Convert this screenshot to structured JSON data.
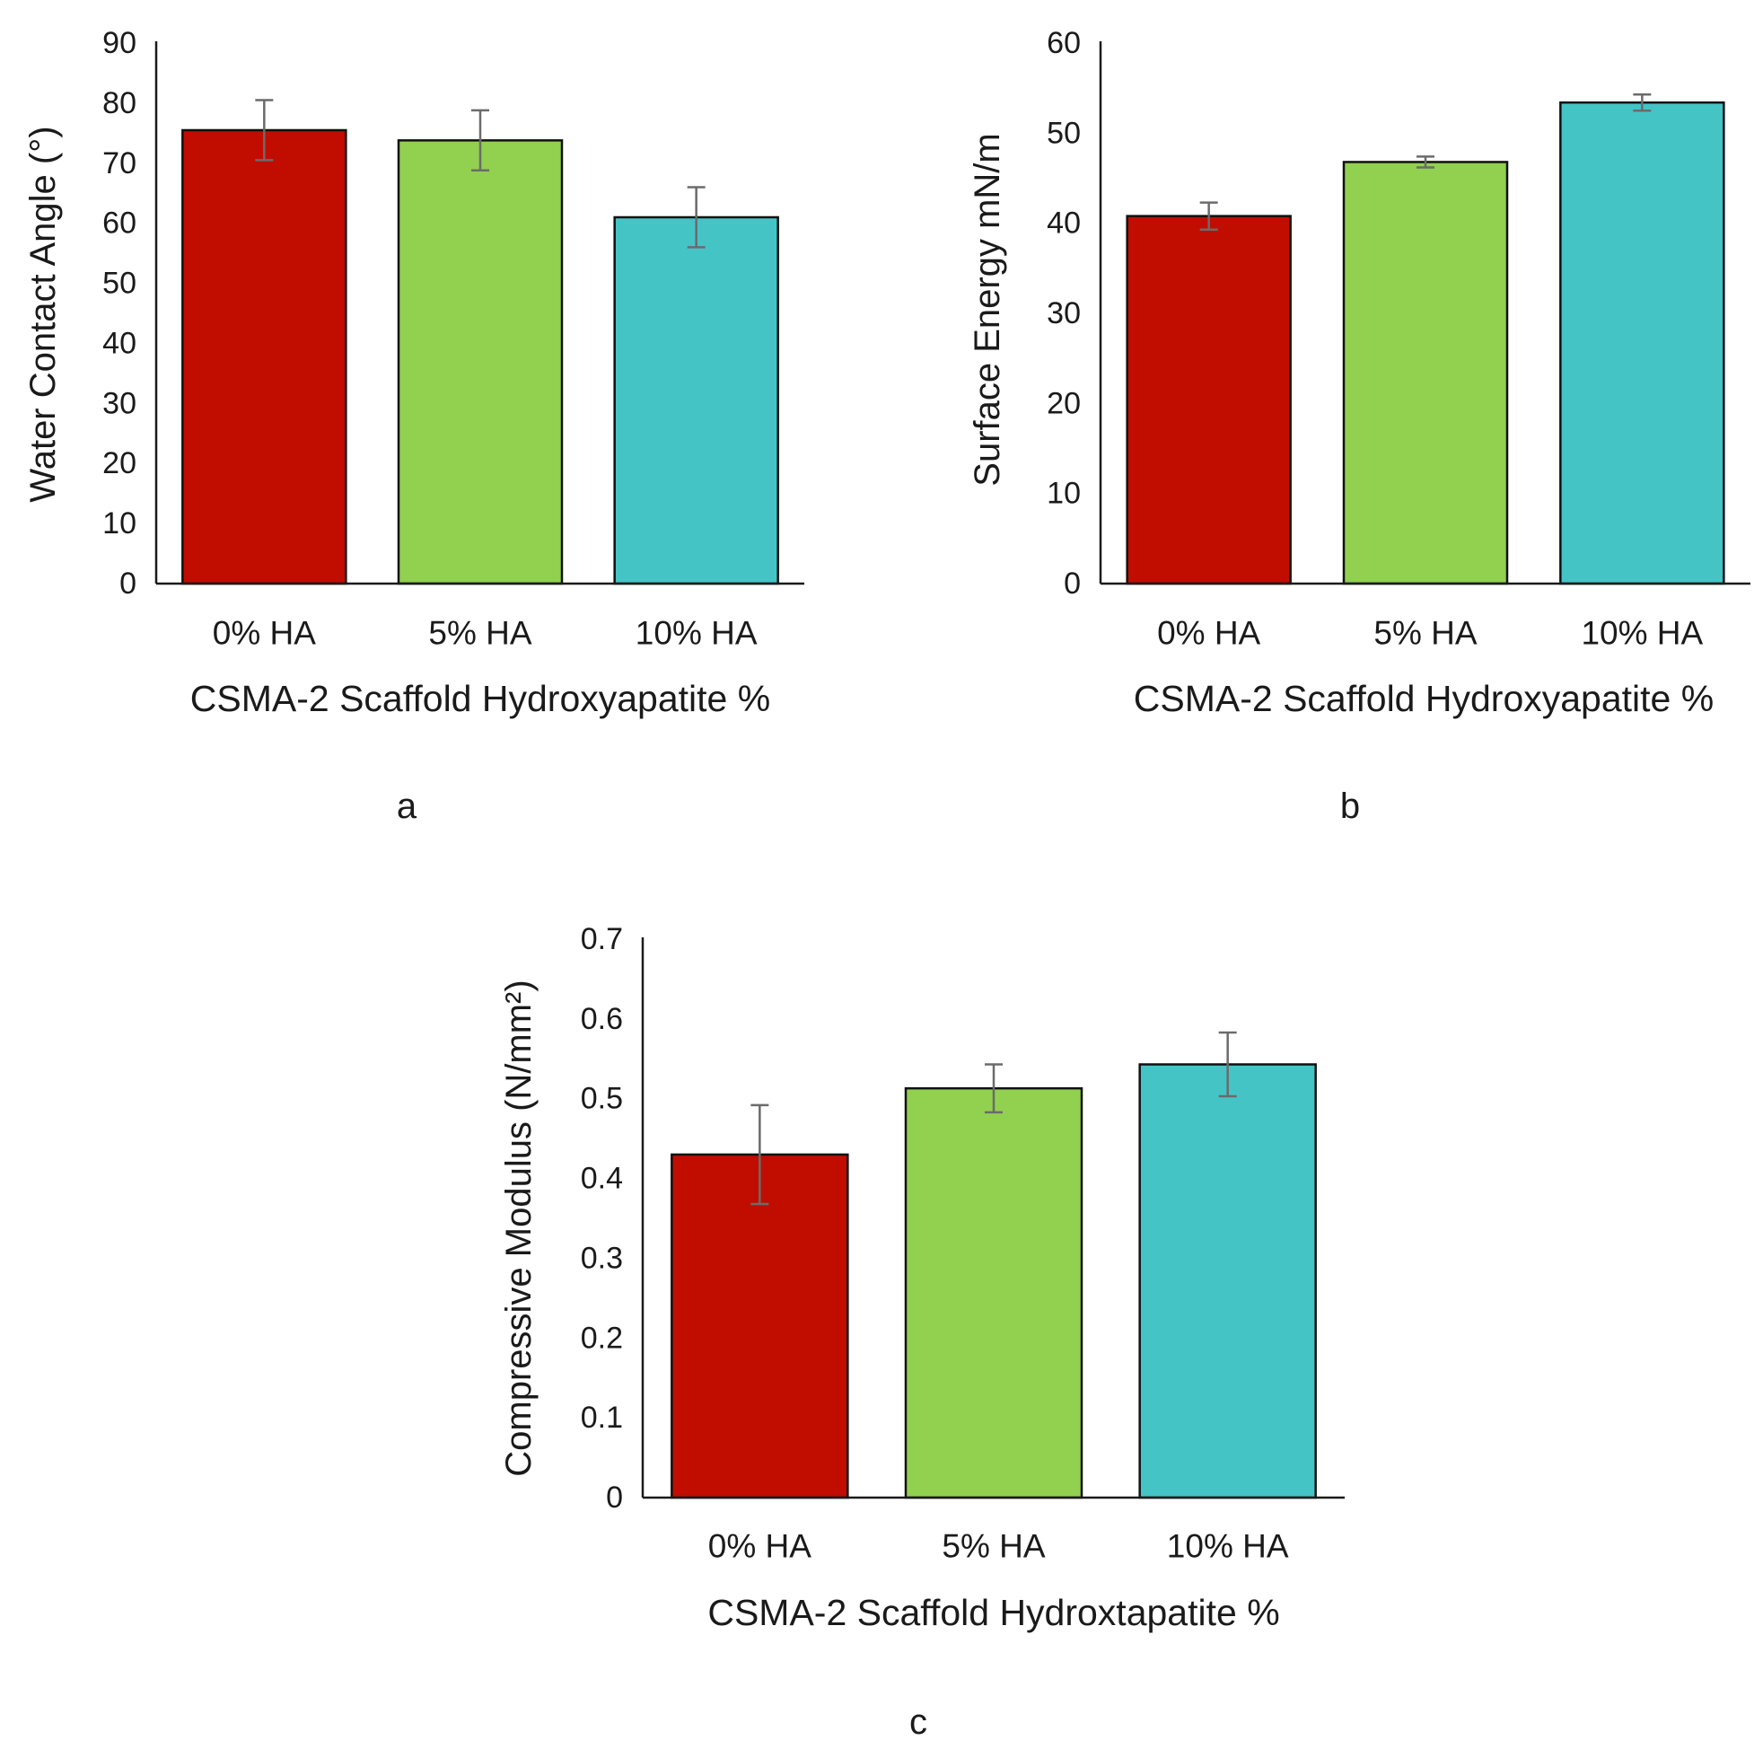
{
  "chart_data": [
    {
      "type": "bar",
      "panel": "a",
      "title": "",
      "categories": [
        "0% HA",
        "5% HA",
        "10% HA"
      ],
      "values": [
        75.5,
        73.8,
        61
      ],
      "errors": [
        5,
        5,
        5
      ],
      "colors": [
        "#c00d00",
        "#92d050",
        "#45c4c6"
      ],
      "xlabel": "CSMA-2 Scaffold Hydroxyapatite %",
      "ylabel": "Water Contact Angle (°)",
      "ylabel_color": "#8a8a8a",
      "ylim": [
        0,
        90
      ],
      "yticks": [
        0,
        10,
        20,
        30,
        40,
        50,
        60,
        70,
        80,
        90
      ],
      "ytick_labels": [
        "0",
        "10",
        "20",
        "30",
        "40",
        "50",
        "60",
        "70",
        "80",
        "90"
      ],
      "grid": false
    },
    {
      "type": "bar",
      "panel": "b",
      "title": "",
      "categories": [
        "0% HA",
        "5% HA",
        "10% HA"
      ],
      "values": [
        40.8,
        46.8,
        53.4
      ],
      "errors": [
        1.5,
        0.6,
        0.9
      ],
      "colors": [
        "#c00d00",
        "#92d050",
        "#45c4c6"
      ],
      "xlabel": "CSMA-2 Scaffold Hydroxyapatite %",
      "ylabel": "Surface Energy mN/m",
      "ylabel_color": "#1a1a1a",
      "ylim": [
        0,
        60
      ],
      "yticks": [
        0,
        10,
        20,
        30,
        40,
        50,
        60
      ],
      "ytick_labels": [
        "0",
        "10",
        "20",
        "30",
        "40",
        "50",
        "60"
      ],
      "grid": false
    },
    {
      "type": "bar",
      "panel": "c",
      "title": "",
      "categories": [
        "0% HA",
        "5% HA",
        "10% HA"
      ],
      "values": [
        0.43,
        0.513,
        0.543
      ],
      "errors": [
        0.062,
        0.03,
        0.04
      ],
      "colors": [
        "#c00d00",
        "#92d050",
        "#45c4c6"
      ],
      "xlabel": "CSMA-2 Scaffold Hydroxtapatite %",
      "ylabel": "Compressive Modulus (N/mm²)",
      "ylabel_color": "#1a1a1a",
      "ylim": [
        0,
        0.7
      ],
      "yticks": [
        0,
        0.1,
        0.2,
        0.3,
        0.4,
        0.5,
        0.6,
        0.7
      ],
      "ytick_labels": [
        "0",
        "0.1",
        "0.2",
        "0.3",
        "0.4",
        "0.5",
        "0.6",
        "0.7"
      ],
      "grid": false
    }
  ]
}
